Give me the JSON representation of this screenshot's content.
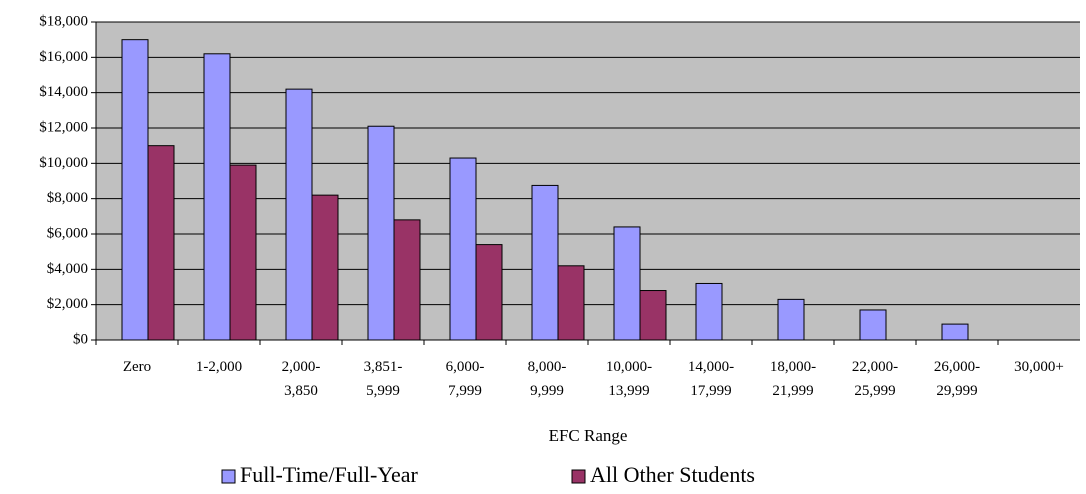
{
  "chart_data": {
    "type": "bar",
    "x_label": "EFC Range",
    "categories": [
      "Zero",
      "1-2,000",
      "2,000- 3,850",
      "3,851- 5,999",
      "6,000- 7,999",
      "8,000- 9,999",
      "10,000- 13,999",
      "14,000- 17,999",
      "18,000- 21,999",
      "22,000- 25,999",
      "26,000- 29,999",
      "30,000+"
    ],
    "series": [
      {
        "name": "Full-Time/Full-Year",
        "color": "#9999ff",
        "values": [
          17000,
          16200,
          14200,
          12100,
          10300,
          8750,
          6400,
          3200,
          2300,
          1700,
          900,
          null
        ]
      },
      {
        "name": "All Other Students",
        "color": "#993366",
        "values": [
          11000,
          9900,
          8200,
          6800,
          5400,
          4200,
          2800,
          null,
          null,
          null,
          null,
          null
        ]
      }
    ],
    "ylim": [
      0,
      18000
    ],
    "yticks": [
      {
        "value": 0,
        "label": "$0"
      },
      {
        "value": 2000,
        "label": "$2,000"
      },
      {
        "value": 4000,
        "label": "$4,000"
      },
      {
        "value": 6000,
        "label": "$6,000"
      },
      {
        "value": 8000,
        "label": "$8,000"
      },
      {
        "value": 10000,
        "label": "$10,000"
      },
      {
        "value": 12000,
        "label": "$12,000"
      },
      {
        "value": 14000,
        "label": "$14,000"
      },
      {
        "value": 16000,
        "label": "$16,000"
      },
      {
        "value": 18000,
        "label": "$18,000"
      }
    ],
    "grid": true,
    "plot_background": "#c0c0c0",
    "legend": "bottom"
  }
}
